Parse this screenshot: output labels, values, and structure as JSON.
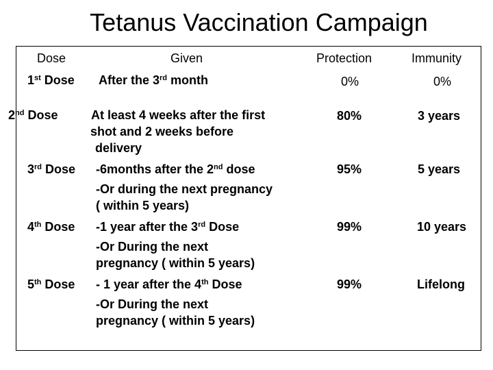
{
  "title": "Tetanus Vaccination Campaign",
  "headers": {
    "dose": "Dose",
    "given": "Given",
    "protection": "Protection",
    "immunity": "Immunity"
  },
  "rows": [
    {
      "dose": "1",
      "dose_sup": "st",
      "dose_suffix": " Dose",
      "given_lines": [
        {
          "pre": "After the 3",
          "sup": "rd",
          "post": " month"
        }
      ],
      "protection": "0%",
      "immunity": "0%"
    },
    {
      "dose": "2",
      "dose_sup": "nd",
      "dose_suffix": " Dose",
      "given_lines": [
        {
          "pre": "At least 4 weeks after the first",
          "sup": "",
          "post": ""
        },
        {
          "pre": "shot and 2 weeks before",
          "sup": "",
          "post": ""
        },
        {
          "pre": "delivery",
          "sup": "",
          "post": ""
        }
      ],
      "protection": "80%",
      "immunity": "3 years"
    },
    {
      "dose": "3",
      "dose_sup": "rd",
      "dose_suffix": " Dose",
      "given_lines": [
        {
          "pre": "-6months after the 2",
          "sup": "nd",
          "post": " dose"
        },
        {
          "pre": "-Or during the next pregnancy",
          "sup": "",
          "post": ""
        },
        {
          "pre": "( within 5 years)",
          "sup": "",
          "post": ""
        }
      ],
      "protection": "95%",
      "immunity": "5 years"
    },
    {
      "dose": "4",
      "dose_sup": "th",
      "dose_suffix": " Dose",
      "given_lines": [
        {
          "pre": "-1 year after the 3",
          "sup": "rd",
          "post": " Dose"
        },
        {
          "pre": "-Or During the next",
          "sup": "",
          "post": ""
        },
        {
          "pre": "pregnancy ( within 5 years)",
          "sup": "",
          "post": ""
        }
      ],
      "protection": "99%",
      "immunity": "10 years"
    },
    {
      "dose": "5",
      "dose_sup": "th",
      "dose_suffix": " Dose",
      "given_lines": [
        {
          "pre": "- 1 year after the 4",
          "sup": "th",
          "post": "  Dose"
        },
        {
          "pre": "-Or During the next",
          "sup": "",
          "post": ""
        },
        {
          "pre": "pregnancy ( within 5 years)",
          "sup": "",
          "post": ""
        }
      ],
      "protection": "99%",
      "immunity": "Lifelong"
    }
  ]
}
